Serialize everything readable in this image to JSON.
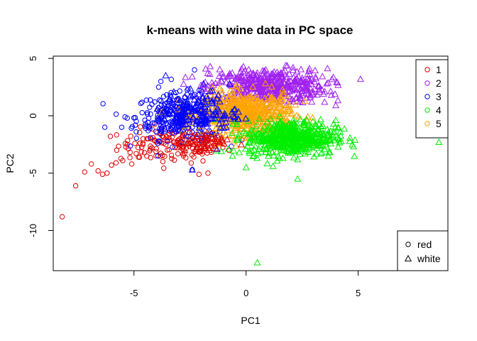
{
  "chart_data": {
    "type": "scatter",
    "title": "k-means with wine data in PC space",
    "xlabel": "PC1",
    "ylabel": "PC2",
    "xlim": [
      -8.6,
      9.0
    ],
    "ylim": [
      -13.5,
      5.2
    ],
    "x_ticks": [
      -5,
      0,
      5
    ],
    "y_ticks": [
      5,
      0,
      -5,
      -10
    ],
    "x_tick_labels": [
      "-5",
      "0",
      "5"
    ],
    "y_tick_labels": [
      "5",
      "0",
      "-5",
      "-10"
    ],
    "grid": false,
    "cluster_legend": {
      "placement": "top-right",
      "entries": [
        {
          "label": "1",
          "color": "#DF0000"
        },
        {
          "label": "2",
          "color": "#A020F0"
        },
        {
          "label": "3",
          "color": "#0000FF"
        },
        {
          "label": "4",
          "color": "#00EE00"
        },
        {
          "label": "5",
          "color": "#FFA500"
        }
      ]
    },
    "wine_legend": {
      "placement": "bottom-right",
      "entries": [
        {
          "label": "red",
          "shape": "circle"
        },
        {
          "label": "white",
          "shape": "triangle"
        }
      ]
    },
    "series": [
      {
        "cluster": "1",
        "color": "#DF0000",
        "shape": "circle",
        "center": [
          -3.3,
          -2.6
        ],
        "spread": [
          1.2,
          0.75
        ],
        "count": 140,
        "points": [
          [
            -8.2,
            -8.8
          ],
          [
            -7.6,
            -6.1
          ],
          [
            -7.2,
            -4.9
          ],
          [
            -6.9,
            -4.2
          ],
          [
            -6.6,
            -4.8
          ],
          [
            -6.4,
            -5.1
          ],
          [
            -6.2,
            -5.0
          ],
          [
            -6.0,
            -4.3
          ],
          [
            -5.8,
            -4.1
          ],
          [
            -5.5,
            -3.9
          ],
          [
            -5.1,
            -4.2
          ],
          [
            -4.8,
            -3.6
          ],
          [
            -2.1,
            -5.1
          ],
          [
            -1.7,
            -5.0
          ],
          [
            -4.6,
            -2.5
          ],
          [
            -4.9,
            -3.3
          ],
          [
            -5.3,
            -2.5
          ]
        ]
      },
      {
        "cluster": "3",
        "color": "#0000FF",
        "shape": "circle",
        "center": [
          -2.9,
          -0.1
        ],
        "spread": [
          1.0,
          1.0
        ],
        "count": 320,
        "points": [
          [
            -6.3,
            -1.0
          ],
          [
            -5.4,
            -0.1
          ],
          [
            -5.3,
            -0.2
          ],
          [
            -4.5,
            -0.9
          ],
          [
            -3.8,
            3.0
          ],
          [
            -2.3,
            4.0
          ],
          [
            -2.4,
            -4.7
          ],
          [
            -3.9,
            2.5
          ],
          [
            -4.9,
            -1.4
          ],
          [
            -4.2,
            1.0
          ]
        ]
      },
      {
        "cluster": "2",
        "color": "#A020F0",
        "shape": "triangle",
        "center": [
          1.0,
          2.6
        ],
        "spread": [
          1.3,
          0.75
        ],
        "count": 460,
        "points": [
          [
            -1.8,
            4.1
          ],
          [
            -1.6,
            4.3
          ],
          [
            -0.2,
            4.1
          ],
          [
            3.6,
            2.8
          ],
          [
            3.8,
            1.8
          ],
          [
            4.0,
            0.9
          ],
          [
            3.5,
            1.2
          ],
          [
            -1.2,
            2.9
          ],
          [
            -0.7,
            3.6
          ],
          [
            2.8,
            3.9
          ]
        ]
      },
      {
        "cluster": "5",
        "color": "#FFA500",
        "shape": "triangle",
        "center": [
          0.0,
          0.2
        ],
        "spread": [
          1.0,
          0.9
        ],
        "count": 520,
        "points": [
          [
            -1.6,
            -0.6
          ],
          [
            -1.2,
            1.1
          ],
          [
            1.5,
            1.0
          ],
          [
            1.9,
            -0.6
          ]
        ]
      },
      {
        "cluster": "4",
        "color": "#00EE00",
        "shape": "triangle",
        "center": [
          2.0,
          -1.9
        ],
        "spread": [
          1.0,
          0.75
        ],
        "count": 560,
        "points": [
          [
            0.5,
            -12.8
          ],
          [
            8.6,
            -2.3
          ],
          [
            -1.1,
            -3.1
          ],
          [
            -0.6,
            -3.5
          ],
          [
            0.0,
            -4.5
          ],
          [
            2.3,
            -5.5
          ],
          [
            3.7,
            -3.2
          ],
          [
            4.2,
            -1.4
          ],
          [
            3.9,
            -0.7
          ],
          [
            -0.3,
            -3.2
          ],
          [
            1.2,
            -4.4
          ]
        ]
      },
      {
        "cluster": "3",
        "color": "#0000FF",
        "shape": "triangle",
        "center": [
          -2.0,
          0.3
        ],
        "spread": [
          0.8,
          0.9
        ],
        "count": 130,
        "points": [
          [
            -2.4,
            -4.7
          ],
          [
            -1.9,
            2.8
          ],
          [
            -1.5,
            2.2
          ],
          [
            -1.3,
            -2.9
          ]
        ]
      },
      {
        "cluster": "1",
        "color": "#DF0000",
        "shape": "triangle",
        "center": [
          -1.9,
          -2.3
        ],
        "spread": [
          0.6,
          0.5
        ],
        "count": 50,
        "points": [
          [
            -1.7,
            -2.0
          ],
          [
            -1.4,
            -2.6
          ]
        ]
      }
    ]
  }
}
